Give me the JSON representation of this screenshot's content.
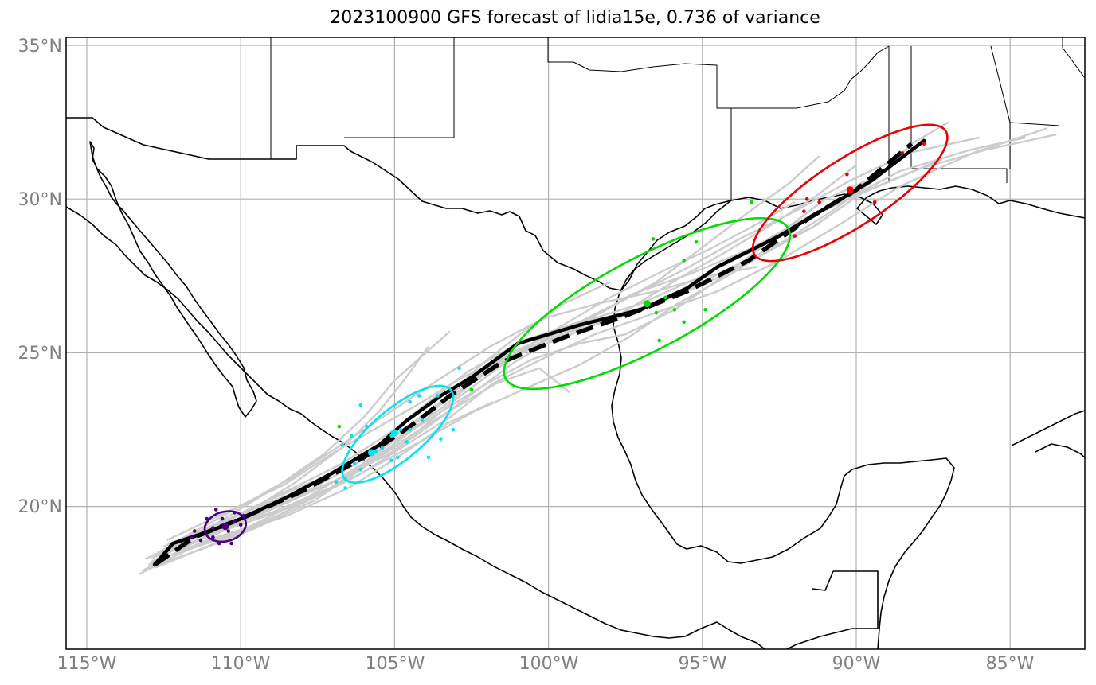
{
  "title": "2023100900 GFS forecast of lidia15e, 0.736 of variance",
  "colors": {
    "grid": "#b0b0b0",
    "coast": "#000000",
    "ensemble": "#cccccc",
    "mean_track": "#000000",
    "ellipse_day1": "#4b0082",
    "ellipse_day2": "#00e5ee",
    "ellipse_day3": "#00dd00",
    "ellipse_day4": "#ee0000"
  },
  "axes": {
    "lon_ticks": [
      "115°W",
      "110°W",
      "105°W",
      "100°W",
      "95°W",
      "90°W",
      "85°W"
    ],
    "lat_ticks": [
      "35°N",
      "30°N",
      "25°N",
      "20°N"
    ]
  },
  "map_data": {
    "lon_range": [
      -115.7,
      -82.6
    ],
    "lat_range": [
      15.5,
      35.3
    ],
    "deterministic_track": [
      [
        -112.8,
        18.1
      ],
      [
        -112.2,
        18.8
      ],
      [
        -111,
        19.2
      ],
      [
        -110,
        19.6
      ],
      [
        -108.5,
        20.3
      ],
      [
        -107,
        21.1
      ],
      [
        -105.5,
        22.0
      ],
      [
        -104.6,
        22.8
      ],
      [
        -103.5,
        23.6
      ],
      [
        -102.5,
        24.2
      ],
      [
        -101,
        25.3
      ],
      [
        -99,
        25.9
      ],
      [
        -97,
        26.4
      ],
      [
        -95.5,
        27.1
      ],
      [
        -94.5,
        27.8
      ],
      [
        -92.5,
        28.8
      ],
      [
        -91,
        29.7
      ],
      [
        -89.5,
        30.6
      ],
      [
        -87.8,
        31.9
      ]
    ],
    "mean_track": [
      [
        -112.8,
        18.1
      ],
      [
        -111.5,
        19.0
      ],
      [
        -110,
        19.6
      ],
      [
        -108,
        20.5
      ],
      [
        -106,
        21.6
      ],
      [
        -104.5,
        22.6
      ],
      [
        -103.2,
        23.6
      ],
      [
        -101.5,
        24.7
      ],
      [
        -99.5,
        25.5
      ],
      [
        -97.5,
        26.2
      ],
      [
        -95.5,
        27.0
      ],
      [
        -93.5,
        28.0
      ],
      [
        -91.5,
        29.4
      ],
      [
        -90,
        30.3
      ],
      [
        -88.2,
        31.8
      ]
    ],
    "ensemble_tracks": [
      [
        [
          -113.2,
          17.9
        ],
        [
          -111.2,
          19.0
        ],
        [
          -109,
          19.9
        ],
        [
          -107,
          20.8
        ],
        [
          -105.2,
          21.9
        ],
        [
          -104,
          22.8
        ],
        [
          -103,
          23.9
        ],
        [
          -101.2,
          25.0
        ],
        [
          -99.2,
          25.9
        ],
        [
          -97,
          26.6
        ],
        [
          -95,
          27.5
        ],
        [
          -93,
          28.5
        ],
        [
          -91.3,
          29.5
        ],
        [
          -89.6,
          30.3
        ],
        [
          -87.2,
          31.3
        ]
      ],
      [
        [
          -112.9,
          18.3
        ],
        [
          -110.8,
          19.4
        ],
        [
          -108.7,
          20.4
        ],
        [
          -106.7,
          21.4
        ],
        [
          -105,
          22.5
        ],
        [
          -103.9,
          23.4
        ],
        [
          -102.6,
          24.4
        ],
        [
          -100.8,
          25.4
        ],
        [
          -99,
          26.0
        ],
        [
          -97.2,
          26.9
        ],
        [
          -95.6,
          27.7
        ],
        [
          -93.8,
          28.7
        ],
        [
          -92,
          29.6
        ],
        [
          -90.2,
          30.6
        ],
        [
          -88.3,
          31.5
        ],
        [
          -86,
          32.0
        ]
      ],
      [
        [
          -112.6,
          18.4
        ],
        [
          -110.6,
          19.2
        ],
        [
          -108.3,
          20.0
        ],
        [
          -106.2,
          21.0
        ],
        [
          -104.8,
          21.9
        ],
        [
          -103.2,
          22.9
        ],
        [
          -101.8,
          24.0
        ],
        [
          -100.2,
          24.8
        ],
        [
          -98.5,
          25.6
        ],
        [
          -96.8,
          26.2
        ],
        [
          -94.5,
          27.0
        ],
        [
          -92.5,
          28.0
        ],
        [
          -90.5,
          29.2
        ],
        [
          -88.6,
          30.4
        ],
        [
          -86.2,
          31.5
        ],
        [
          -83.8,
          32.3
        ]
      ],
      [
        [
          -113.3,
          17.8
        ],
        [
          -111.5,
          18.7
        ],
        [
          -109.8,
          19.3
        ],
        [
          -108,
          20.2
        ],
        [
          -106.3,
          21.2
        ],
        [
          -104.8,
          22.3
        ],
        [
          -103.6,
          23.3
        ],
        [
          -102.2,
          24.6
        ],
        [
          -100.8,
          25.7
        ],
        [
          -99.5,
          26.6
        ],
        [
          -98,
          27.3
        ]
      ],
      [
        [
          -112.3,
          18.6
        ],
        [
          -110.1,
          19.6
        ],
        [
          -108.2,
          20.8
        ],
        [
          -106.6,
          22.0
        ],
        [
          -105.5,
          23.1
        ],
        [
          -104.7,
          24.1
        ],
        [
          -103.9,
          25.2
        ]
      ],
      [
        [
          -112.8,
          18.0
        ],
        [
          -110.6,
          18.9
        ],
        [
          -108.6,
          19.8
        ],
        [
          -106.8,
          20.7
        ],
        [
          -105.3,
          21.5
        ],
        [
          -104,
          22.2
        ],
        [
          -102.4,
          23.1
        ],
        [
          -100.6,
          23.9
        ],
        [
          -99,
          24.6
        ],
        [
          -97.4,
          25.5
        ],
        [
          -95.8,
          26.6
        ],
        [
          -94,
          27.6
        ],
        [
          -92.4,
          28.6
        ],
        [
          -91.2,
          29.2
        ]
      ],
      [
        [
          -112.9,
          18.2
        ],
        [
          -110.9,
          19.3
        ],
        [
          -109.1,
          20.2
        ],
        [
          -107.2,
          21.0
        ],
        [
          -105.7,
          21.8
        ],
        [
          -104.3,
          22.8
        ],
        [
          -103,
          23.8
        ],
        [
          -101.4,
          24.8
        ],
        [
          -99.6,
          25.6
        ],
        [
          -97.8,
          26.1
        ],
        [
          -96,
          26.8
        ],
        [
          -94.2,
          27.7
        ],
        [
          -92.4,
          28.6
        ],
        [
          -90.8,
          29.6
        ],
        [
          -89.3,
          30.7
        ],
        [
          -88.2,
          31.8
        ],
        [
          -87,
          32.5
        ]
      ],
      [
        [
          -112.5,
          18.7
        ],
        [
          -110.4,
          19.6
        ],
        [
          -108.4,
          20.4
        ],
        [
          -106.6,
          21.3
        ],
        [
          -105.1,
          22.2
        ],
        [
          -103.8,
          23.1
        ],
        [
          -102.3,
          24.2
        ],
        [
          -100.6,
          25.2
        ],
        [
          -98.8,
          25.9
        ],
        [
          -96.9,
          26.5
        ],
        [
          -95,
          27.2
        ],
        [
          -93.2,
          28.1
        ],
        [
          -91.4,
          29.1
        ],
        [
          -89.8,
          30.2
        ],
        [
          -87.9,
          31.0
        ],
        [
          -85.8,
          31.6
        ],
        [
          -83.5,
          32.1
        ]
      ],
      [
        [
          -113.1,
          18.3
        ],
        [
          -111,
          19.2
        ],
        [
          -109,
          19.8
        ],
        [
          -107.1,
          20.6
        ],
        [
          -105.6,
          21.6
        ],
        [
          -104.4,
          22.5
        ],
        [
          -103.3,
          23.2
        ],
        [
          -102,
          24.0
        ],
        [
          -100.5,
          24.8
        ],
        [
          -99,
          25.3
        ],
        [
          -97.5,
          25.6
        ],
        [
          -95.9,
          26.4
        ],
        [
          -94.3,
          27.5
        ],
        [
          -92.6,
          28.8
        ],
        [
          -91,
          30.0
        ],
        [
          -89.2,
          30.8
        ]
      ],
      [
        [
          -112.7,
          18.5
        ],
        [
          -110.7,
          19.5
        ],
        [
          -108.9,
          20.6
        ],
        [
          -107.3,
          21.7
        ],
        [
          -106,
          22.9
        ],
        [
          -105,
          24.1
        ],
        [
          -104.1,
          24.9
        ],
        [
          -103.2,
          25.7
        ]
      ],
      [
        [
          -112.4,
          18.9
        ],
        [
          -110.5,
          19.8
        ],
        [
          -108.6,
          20.7
        ],
        [
          -106.9,
          21.8
        ],
        [
          -105.5,
          22.6
        ],
        [
          -104.1,
          23.4
        ],
        [
          -102.8,
          24.2
        ],
        [
          -101.2,
          24.9
        ],
        [
          -99.5,
          25.5
        ],
        [
          -97.6,
          26.3
        ],
        [
          -95.8,
          27.4
        ],
        [
          -94.2,
          28.3
        ],
        [
          -92.7,
          29.2
        ],
        [
          -91.3,
          30.1
        ],
        [
          -90,
          31.1
        ]
      ],
      [
        [
          -113,
          18.0
        ],
        [
          -111.3,
          18.6
        ],
        [
          -109.5,
          19.3
        ],
        [
          -107.6,
          20.2
        ],
        [
          -106.1,
          21.2
        ],
        [
          -104.8,
          22.1
        ],
        [
          -103.4,
          23.0
        ],
        [
          -101.7,
          24.0
        ],
        [
          -100.3,
          24.5
        ],
        [
          -99.3,
          23.7
        ]
      ],
      [
        [
          -112.6,
          18.3
        ],
        [
          -110.5,
          19.0
        ],
        [
          -108.5,
          19.7
        ],
        [
          -106.5,
          20.6
        ],
        [
          -104.9,
          21.6
        ],
        [
          -103.3,
          22.7
        ],
        [
          -101.8,
          23.4
        ]
      ],
      [
        [
          -112.9,
          18.4
        ],
        [
          -110.8,
          19.1
        ],
        [
          -108.7,
          20.1
        ],
        [
          -106.8,
          20.9
        ],
        [
          -105.2,
          21.7
        ],
        [
          -103.9,
          22.6
        ],
        [
          -102.7,
          23.5
        ],
        [
          -101.1,
          24.7
        ],
        [
          -99.2,
          25.8
        ],
        [
          -97.3,
          26.9
        ],
        [
          -95.3,
          27.6
        ],
        [
          -93.4,
          28.4
        ],
        [
          -91.8,
          29.3
        ],
        [
          -90.3,
          30.0
        ],
        [
          -88.6,
          30.9
        ],
        [
          -86.3,
          31.6
        ],
        [
          -84.5,
          32.0
        ]
      ],
      [
        [
          -112.2,
          18.8
        ],
        [
          -110.2,
          19.9
        ],
        [
          -108.4,
          20.9
        ],
        [
          -106.9,
          21.9
        ],
        [
          -105.7,
          22.7
        ],
        [
          -104.5,
          23.5
        ],
        [
          -103.3,
          24.3
        ],
        [
          -101.9,
          25.2
        ],
        [
          -100.2,
          26.1
        ],
        [
          -98.4,
          26.6
        ],
        [
          -96.5,
          27.0
        ],
        [
          -94.8,
          27.5
        ],
        [
          -93.2,
          27.8
        ]
      ],
      [
        [
          -113,
          18.1
        ],
        [
          -111.1,
          18.9
        ],
        [
          -109.2,
          19.5
        ],
        [
          -107.4,
          20.4
        ],
        [
          -105.8,
          21.4
        ],
        [
          -104.3,
          22.4
        ],
        [
          -103,
          23.5
        ],
        [
          -101.5,
          24.6
        ],
        [
          -100,
          25.5
        ],
        [
          -98.3,
          26.3
        ],
        [
          -96.5,
          27.3
        ],
        [
          -94.9,
          28.5
        ],
        [
          -93.6,
          29.5
        ],
        [
          -92.2,
          30.5
        ],
        [
          -91.2,
          31.4
        ]
      ],
      [
        [
          -112.5,
          18.6
        ],
        [
          -110.3,
          19.4
        ],
        [
          -108.2,
          20.3
        ],
        [
          -106.4,
          21.3
        ],
        [
          -104.9,
          22.2
        ],
        [
          -103.6,
          23.1
        ],
        [
          -102.5,
          24.0
        ],
        [
          -101.2,
          24.9
        ],
        [
          -99.7,
          25.8
        ],
        [
          -98,
          26.8
        ],
        [
          -96.4,
          27.6
        ],
        [
          -94.7,
          28.4
        ],
        [
          -93.2,
          29.2
        ],
        [
          -92,
          29.9
        ]
      ]
    ],
    "ellipses": [
      {
        "day": 1,
        "center": [
          -110.5,
          19.35
        ],
        "a_deg": 0.68,
        "b_deg": 0.48,
        "angle_deg": 15,
        "color": "#4b0082",
        "mean_point": [
          -110.5,
          19.35
        ],
        "points": [
          [
            -110.8,
            19.9
          ],
          [
            -110.2,
            19.8
          ],
          [
            -111.1,
            19.6
          ],
          [
            -110.6,
            19.6
          ],
          [
            -110.2,
            19.5
          ],
          [
            -109.9,
            19.7
          ],
          [
            -111.5,
            19.2
          ],
          [
            -110.9,
            19.3
          ],
          [
            -110.4,
            19.2
          ],
          [
            -110,
            19.4
          ],
          [
            -111.3,
            18.9
          ],
          [
            -110.7,
            18.8
          ],
          [
            -110.3,
            18.8
          ],
          [
            -111.6,
            19.0
          ],
          [
            -110.9,
            19.0
          ]
        ]
      },
      {
        "day": 2,
        "center": [
          -104.9,
          22.35
        ],
        "a_deg": 2.25,
        "b_deg": 0.82,
        "angle_deg": 40,
        "color": "#00e5ee",
        "mean_point": [
          -105.0,
          22.4
        ],
        "points": [
          [
            -106.1,
            23.3
          ],
          [
            -105.9,
            22.6
          ],
          [
            -106.4,
            22.3
          ],
          [
            -106.7,
            22.0
          ],
          [
            -105.6,
            21.8
          ],
          [
            -105.4,
            21.9
          ],
          [
            -106.3,
            21.4
          ],
          [
            -106.1,
            21.2
          ],
          [
            -106.6,
            20.9
          ],
          [
            -106.6,
            20.6
          ],
          [
            -106.9,
            20.8
          ],
          [
            -105.1,
            22.3
          ],
          [
            -104.8,
            22.5
          ],
          [
            -104.5,
            22.5
          ],
          [
            -104.1,
            22.8
          ],
          [
            -104.5,
            23.4
          ],
          [
            -104.2,
            23.6
          ],
          [
            -103.6,
            23.6
          ],
          [
            -103.9,
            21.6
          ],
          [
            -103.5,
            22.2
          ],
          [
            -103.1,
            22.5
          ],
          [
            -102.9,
            24.5
          ],
          [
            -104.6,
            22.1
          ],
          [
            -105.1,
            21.5
          ],
          [
            -104.9,
            21.6
          ]
        ],
        "extra_point": [
          -105.75,
          21.75
        ]
      },
      {
        "day": 3,
        "center": [
          -96.8,
          26.6
        ],
        "a_deg": 5.2,
        "b_deg": 1.5,
        "angle_deg": 28,
        "color": "#00dd00",
        "mean_point": [
          -96.8,
          26.6
        ],
        "points": [
          [
            -102.5,
            23.8
          ],
          [
            -106.8,
            22.6
          ],
          [
            -96.5,
            26.3
          ],
          [
            -95.6,
            26.0
          ],
          [
            -95.9,
            26.4
          ],
          [
            -94.9,
            26.4
          ],
          [
            -96.4,
            25.4
          ],
          [
            -96.6,
            28.7
          ],
          [
            -95.2,
            28.6
          ],
          [
            -95.6,
            28.0
          ],
          [
            -93.4,
            29.9
          ],
          [
            -96.2,
            26.8
          ]
        ]
      },
      {
        "day": 4,
        "center": [
          -90.2,
          30.2
        ],
        "a_deg": 3.7,
        "b_deg": 1.1,
        "angle_deg": 33,
        "color": "#ee0000",
        "mean_point": [
          -90.2,
          30.3
        ],
        "points": [
          [
            -91.2,
            29.9
          ],
          [
            -91.6,
            30.0
          ],
          [
            -90.3,
            30.8
          ],
          [
            -89.4,
            29.9
          ],
          [
            -91.7,
            29.6
          ],
          [
            -92,
            28.8
          ],
          [
            -88.5,
            31.5
          ],
          [
            -87.8,
            31.8
          ]
        ]
      }
    ]
  }
}
